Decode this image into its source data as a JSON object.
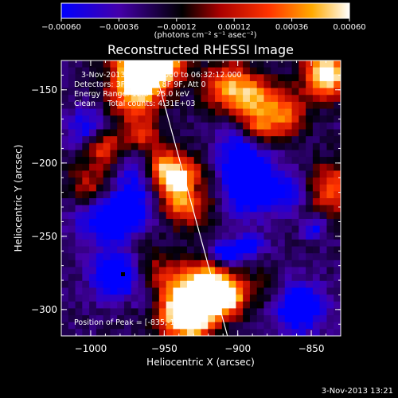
{
  "chart_data": {
    "type": "heatmap",
    "title": "Reconstructed RHESSI Image",
    "xlabel": "Heliocentric X (arcsec)",
    "ylabel": "Heliocentric Y (arcsec)",
    "xlim": [
      -1020,
      -830
    ],
    "ylim": [
      -318,
      -130
    ],
    "x_ticks": [
      -1000,
      -950,
      -900,
      -850
    ],
    "x_tick_labels": [
      "−1000",
      "−950",
      "−900",
      "−850"
    ],
    "y_ticks": [
      -150,
      -200,
      -250,
      -300
    ],
    "y_tick_labels": [
      "−150",
      "−200",
      "−250",
      "−300"
    ],
    "colorbar": {
      "ticks": [
        -0.0006,
        -0.00036,
        -0.00012,
        0.00012,
        0.00036,
        0.0006
      ],
      "tick_labels": [
        "−0.00060",
        "−0.00036",
        "−0.00012",
        "0.00012",
        "0.00036",
        "0.00060"
      ],
      "unit_label": "(photons cm⁻² s⁻¹ asec⁻²)",
      "stops": [
        "#0000ff",
        "#4400aa",
        "#000000",
        "#aa0000",
        "#ff3300",
        "#ffaa00",
        "#ffffff"
      ]
    },
    "annotations": [
      "3-Nov-2013 06:30:36.000 to 06:32:12.000",
      "Detectors: 3F 5F 6F 7F 8F 9F, Att 0",
      "Energy Range: 12.0 - 25.0 keV",
      "Clean     Total counts: 4.31E+03"
    ],
    "peak_label": "Position of Peak = [-835,-141]",
    "peak": [
      -835,
      -141
    ],
    "limb_line": [
      [
        -958,
        -130
      ],
      [
        -907,
        -318
      ]
    ],
    "footer_timestamp": "3-Nov-2013 13:21"
  }
}
